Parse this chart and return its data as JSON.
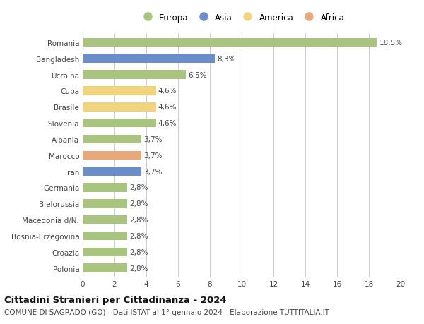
{
  "categories": [
    "Romania",
    "Bangladesh",
    "Ucraina",
    "Cuba",
    "Brasile",
    "Slovenia",
    "Albania",
    "Marocco",
    "Iran",
    "Germania",
    "Bielorussia",
    "Macedonia d/N.",
    "Bosnia-Erzegovina",
    "Croazia",
    "Polonia"
  ],
  "values": [
    18.5,
    8.3,
    6.5,
    4.6,
    4.6,
    4.6,
    3.7,
    3.7,
    3.7,
    2.8,
    2.8,
    2.8,
    2.8,
    2.8,
    2.8
  ],
  "labels": [
    "18,5%",
    "8,3%",
    "6,5%",
    "4,6%",
    "4,6%",
    "4,6%",
    "3,7%",
    "3,7%",
    "3,7%",
    "2,8%",
    "2,8%",
    "2,8%",
    "2,8%",
    "2,8%",
    "2,8%"
  ],
  "continent": [
    "Europa",
    "Asia",
    "Europa",
    "America",
    "America",
    "Europa",
    "Europa",
    "Africa",
    "Asia",
    "Europa",
    "Europa",
    "Europa",
    "Europa",
    "Europa",
    "Europa"
  ],
  "colors": {
    "Europa": "#a8c47e",
    "Asia": "#6b8ecb",
    "America": "#f2d47e",
    "Africa": "#e8a87c"
  },
  "legend_order": [
    "Europa",
    "Asia",
    "America",
    "Africa"
  ],
  "xlim": [
    0,
    20
  ],
  "xticks": [
    0,
    2,
    4,
    6,
    8,
    10,
    12,
    14,
    16,
    18,
    20
  ],
  "title": "Cittadini Stranieri per Cittadinanza - 2024",
  "subtitle": "COMUNE DI SAGRADO (GO) - Dati ISTAT al 1° gennaio 2024 - Elaborazione TUTTITALIA.IT",
  "background_color": "#ffffff",
  "grid_color": "#cccccc",
  "bar_height": 0.55,
  "label_fontsize": 7.5,
  "tick_fontsize": 7.5,
  "title_fontsize": 9.5,
  "subtitle_fontsize": 7.5
}
